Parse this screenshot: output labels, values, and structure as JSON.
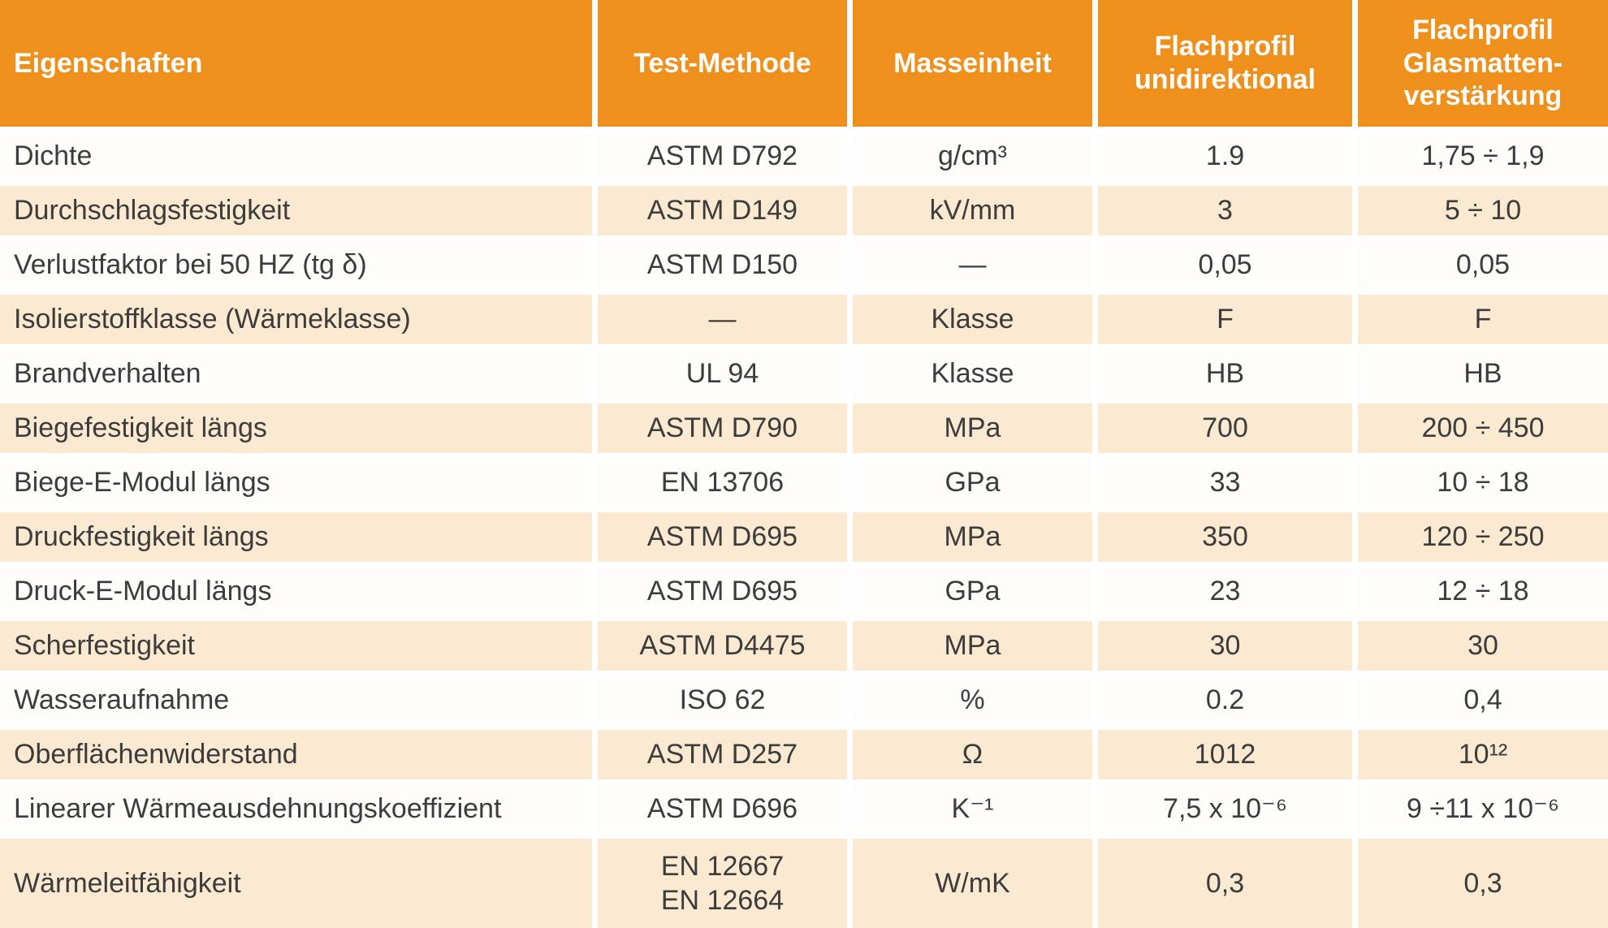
{
  "table": {
    "colors": {
      "header_bg": "#EF901D",
      "header_text": "#FFFFFF",
      "stripe_bg": "#FBE9D2",
      "plain_bg": "#FEFDFB",
      "text": "#3C3C3B"
    },
    "headers": [
      "Eigenschaften",
      "Test-Methode",
      "Masseinheit",
      "Flachprofil\nunidirektional",
      "Flachprofil\nGlasmatten-\nverstärkung"
    ],
    "rows": [
      [
        "Dichte",
        "ASTM D792",
        "g/cm³",
        "1.9",
        "1,75 ÷ 1,9"
      ],
      [
        "Durchschlagsfestigkeit",
        "ASTM D149",
        "kV/mm",
        "3",
        "5 ÷ 10"
      ],
      [
        "Verlustfaktor bei 50 HZ (tg δ)",
        "ASTM D150",
        "—",
        "0,05",
        "0,05"
      ],
      [
        "Isolierstoffklasse (Wärmeklasse)",
        "—",
        "Klasse",
        "F",
        "F"
      ],
      [
        "Brandverhalten",
        "UL 94",
        "Klasse",
        "HB",
        "HB"
      ],
      [
        "Biegefestigkeit längs",
        "ASTM D790",
        "MPa",
        "700",
        "200 ÷ 450"
      ],
      [
        "Biege-E-Modul längs",
        "EN 13706",
        "GPa",
        "33",
        "10 ÷ 18"
      ],
      [
        "Druckfestigkeit längs",
        "ASTM D695",
        "MPa",
        "350",
        "120 ÷ 250"
      ],
      [
        "Druck-E-Modul längs",
        "ASTM D695",
        "GPa",
        "23",
        "12 ÷ 18"
      ],
      [
        "Scherfestigkeit",
        "ASTM D4475",
        "MPa",
        "30",
        "30"
      ],
      [
        "Wasseraufnahme",
        "ISO 62",
        "%",
        "0.2",
        "0,4"
      ],
      [
        "Oberflächenwiderstand",
        "ASTM D257",
        "Ω",
        "1012",
        "10¹²"
      ],
      [
        "Linearer Wärmeausdehnungskoeffizient",
        "ASTM D696",
        "K⁻¹",
        "7,5 x 10⁻⁶",
        "9 ÷11 x 10⁻⁶"
      ],
      [
        "Wärmeleitfähigkeit",
        "EN 12667\nEN 12664",
        "W/mK",
        "0,3",
        "0,3"
      ]
    ]
  }
}
